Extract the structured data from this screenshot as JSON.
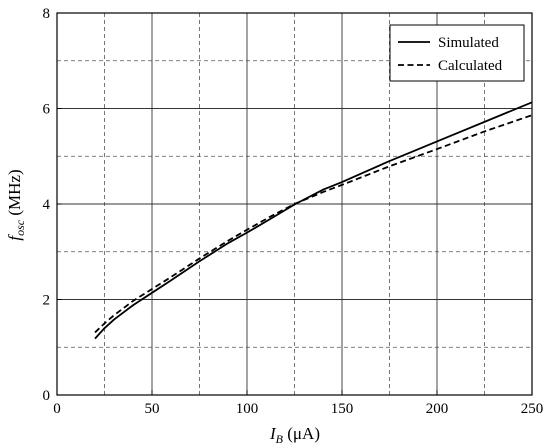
{
  "chart_data": {
    "type": "line",
    "xlabel": {
      "main": "I",
      "sub": "B",
      "unit": " (μA)"
    },
    "ylabel": {
      "main": "f",
      "sub": "osc",
      "unit": " (MHz)"
    },
    "xlim": [
      0,
      250
    ],
    "ylim": [
      0,
      8
    ],
    "x_ticks": [
      "0",
      "50",
      "100",
      "150",
      "200",
      "250"
    ],
    "y_ticks": [
      "0",
      "2",
      "4",
      "6",
      "8"
    ],
    "grid": true,
    "legend_position": "top-right",
    "series": [
      {
        "name": "Simulated",
        "style": "solid",
        "x": [
          20,
          25,
          30,
          40,
          50,
          60,
          75,
          90,
          100,
          112,
          125,
          140,
          150,
          175,
          200,
          225,
          250
        ],
        "y": [
          1.18,
          1.4,
          1.58,
          1.88,
          2.14,
          2.4,
          2.8,
          3.18,
          3.4,
          3.68,
          3.99,
          4.3,
          4.46,
          4.9,
          5.31,
          5.72,
          6.13
        ]
      },
      {
        "name": "Calculated",
        "style": "dashed",
        "x": [
          20,
          25,
          30,
          40,
          50,
          60,
          75,
          90,
          100,
          112,
          125,
          140,
          150,
          175,
          200,
          225,
          250
        ],
        "y": [
          1.31,
          1.5,
          1.67,
          1.97,
          2.22,
          2.47,
          2.86,
          3.23,
          3.46,
          3.73,
          4.0,
          4.25,
          4.4,
          4.79,
          5.15,
          5.52,
          5.86
        ]
      }
    ]
  }
}
